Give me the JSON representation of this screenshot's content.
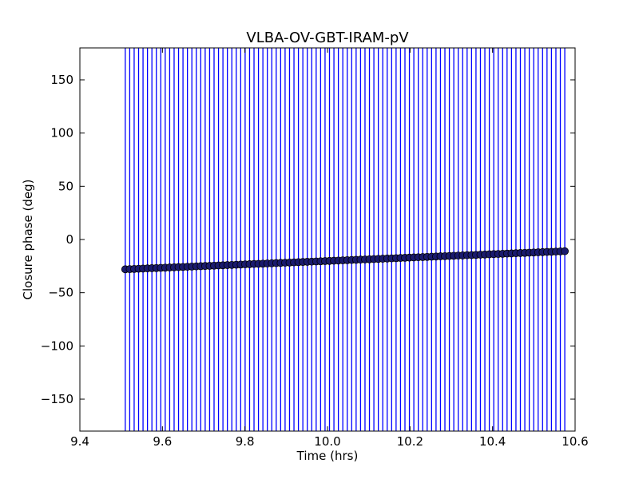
{
  "chart_data": {
    "type": "scatter",
    "title": "VLBA-OV-GBT-IRAM-pV",
    "xlabel": "Time (hrs)",
    "ylabel": "Closure phase (deg)",
    "xlim": [
      9.4,
      10.6
    ],
    "ylim": [
      -180,
      180
    ],
    "x_ticks": [
      9.4,
      9.6,
      9.8,
      10.0,
      10.2,
      10.4,
      10.6
    ],
    "x_tick_labels": [
      "9.4",
      "9.6",
      "9.8",
      "10.0",
      "10.2",
      "10.4",
      "10.6"
    ],
    "y_ticks": [
      -150,
      -100,
      -50,
      0,
      50,
      100,
      150
    ],
    "y_tick_labels": [
      "−150",
      "−100",
      "−50",
      "0",
      "50",
      "100",
      "150"
    ],
    "grid": false,
    "series": [
      {
        "x_start": 9.51,
        "x_end": 10.575,
        "count": 100,
        "y_start": -28,
        "y_end": -11,
        "error_bar": [
          -180,
          180
        ],
        "marker_color": "#1a1a6e",
        "errorbar_color": "#0000ff"
      }
    ]
  }
}
